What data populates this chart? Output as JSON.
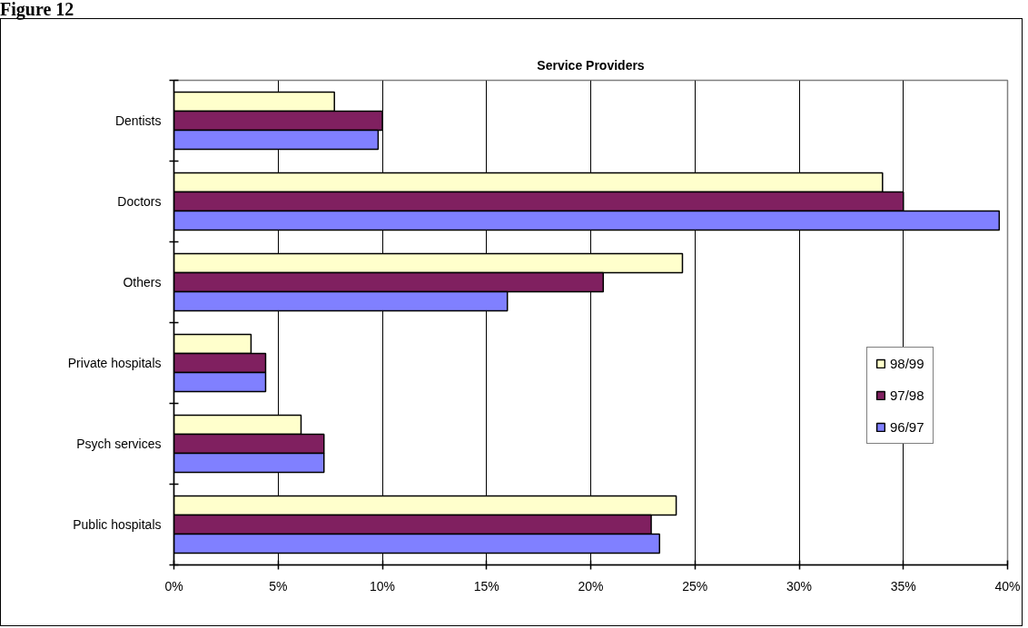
{
  "chart_data": {
    "type": "bar",
    "orientation": "horizontal",
    "title": "Service Providers",
    "annotations": [
      "Figure 12"
    ],
    "categories": [
      "Dentists",
      "Doctors",
      "Others",
      "Private hospitals",
      "Psych services",
      "Public hospitals"
    ],
    "series": [
      {
        "name": "98/99",
        "color": "#ffffcc",
        "values": [
          7.7,
          34.0,
          24.4,
          3.7,
          6.1,
          24.1
        ]
      },
      {
        "name": "97/98",
        "color": "#802060",
        "values": [
          10.0,
          35.0,
          20.6,
          4.4,
          7.2,
          22.9
        ]
      },
      {
        "name": "96/97",
        "color": "#8080ff",
        "values": [
          9.8,
          39.6,
          16.0,
          4.4,
          7.2,
          23.3
        ]
      }
    ],
    "xlim": [
      0,
      40
    ],
    "xticks": [
      {
        "value": 0,
        "label": "0%"
      },
      {
        "value": 5,
        "label": "5%"
      },
      {
        "value": 10,
        "label": "10%"
      },
      {
        "value": 15,
        "label": "15%"
      },
      {
        "value": 20,
        "label": "20%"
      },
      {
        "value": 25,
        "label": "25%"
      },
      {
        "value": 30,
        "label": "30%"
      },
      {
        "value": 35,
        "label": "35%"
      },
      {
        "value": 40,
        "label": "40%"
      }
    ],
    "grid": "x",
    "legend": "right"
  }
}
